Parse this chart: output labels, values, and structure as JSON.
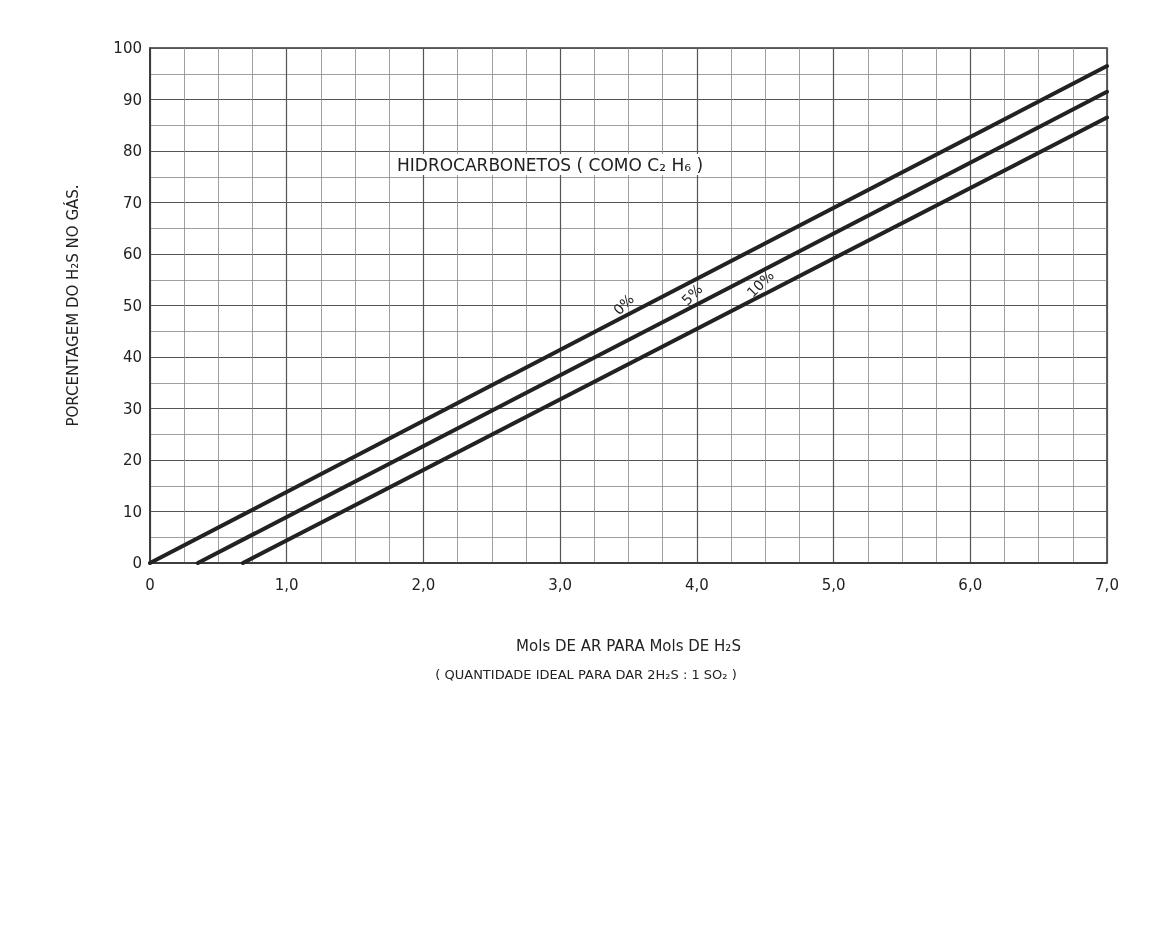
{
  "chart_data": {
    "type": "line",
    "xlabel": "Mols DE AR PARA Mols DE H₂S",
    "ylabel": "PORCENTAGEM DO H₂S NO GÁS.",
    "annotations": [
      "HIDROCARBONETOS ( COMO C₂ H₆ )",
      "( QUANTIDADE IDEAL PARA DAR 2H₂S : 1 SO₂ )"
    ],
    "series": [
      {
        "name": "0%",
        "color": "#222222",
        "x": [
          0,
          3.5,
          7
        ],
        "values": [
          0,
          48.3,
          96.5
        ]
      },
      {
        "name": "5%",
        "color": "#222222",
        "x": [
          0.35,
          4.0,
          7
        ],
        "values": [
          0,
          50.2,
          91.5
        ]
      },
      {
        "name": "10%",
        "color": "#222222",
        "x": [
          0.68,
          4.5,
          7
        ],
        "values": [
          0,
          52.3,
          86.5
        ]
      }
    ],
    "xlim": [
      0,
      7
    ],
    "xticks": [
      0,
      {
        "value": 1,
        "label": "1,0"
      },
      {
        "value": 2,
        "label": "2,0"
      },
      {
        "value": 3,
        "label": "3,0"
      },
      {
        "value": 4,
        "label": "4,0"
      },
      {
        "value": 5,
        "label": "5,0"
      },
      {
        "value": 6,
        "label": "6,0"
      },
      {
        "value": 7,
        "label": "7,0"
      }
    ],
    "ylim": [
      0,
      100
    ],
    "yticks": [
      0,
      10,
      20,
      30,
      40,
      50,
      60,
      70,
      80,
      90,
      100
    ],
    "grid": true,
    "legend": false,
    "marker": "none",
    "line_style": "solid"
  }
}
